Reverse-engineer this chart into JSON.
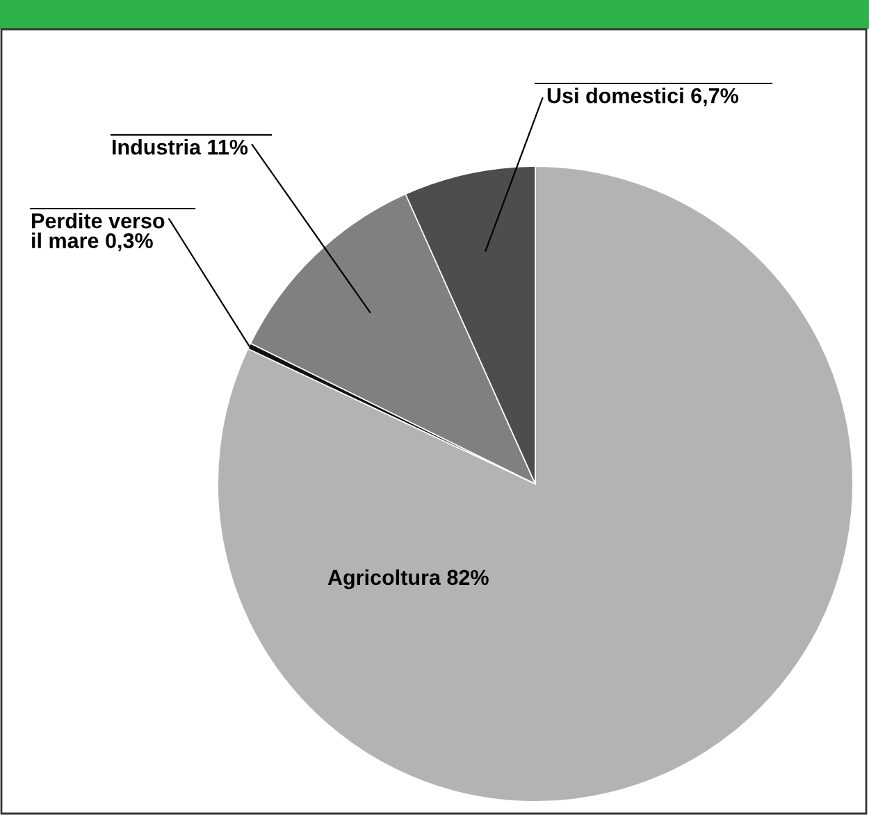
{
  "chart_data": {
    "type": "pie",
    "categories": [
      "Agricoltura",
      "Perdite verso\nil mare",
      "Industria",
      "Usi domestici"
    ],
    "values": [
      82,
      0.3,
      11,
      6.7
    ],
    "value_labels": [
      "82%",
      "0,3%",
      "11%",
      "6,7%"
    ],
    "colors": [
      "#b3b3b3",
      "#111111",
      "#808080",
      "#4d4d4d"
    ]
  }
}
